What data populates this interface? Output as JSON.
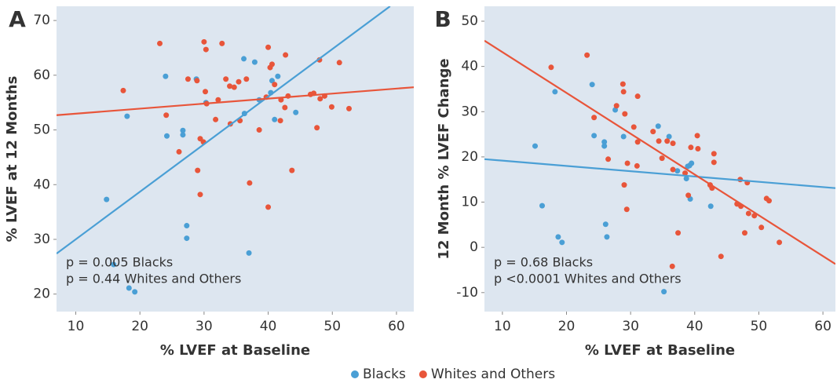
{
  "chart_data": [
    {
      "type": "scatter",
      "panel": "A",
      "y_label": "% LVEF at 12 Months",
      "x_label": "% LVEF at Baseline",
      "annotations": [
        "p = 0.005 Blacks",
        "p = 0.44 Whites and Others"
      ],
      "background": "#dde6f0",
      "xlim": [
        7,
        62.7
      ],
      "ylim": [
        16.8,
        72.6
      ],
      "xticks": [
        10,
        20,
        30,
        40,
        50,
        60
      ],
      "yticks": [
        20,
        30,
        40,
        50,
        60,
        70
      ],
      "series": [
        {
          "name": "Blacks",
          "color": "#4a9fd5",
          "x": [
            24.0,
            18.0,
            24.2,
            26.7,
            26.7,
            14.8,
            27.3,
            27.3,
            15.9,
            18.3,
            19.2,
            28.8,
            30.3,
            36.2,
            37.9,
            41.5,
            40.6,
            40.4,
            38.6,
            41.0,
            44.3,
            37.0,
            36.3
          ],
          "values": [
            59.8,
            52.5,
            48.9,
            49.9,
            49.1,
            37.3,
            32.5,
            30.2,
            25.4,
            21.1,
            20.4,
            59.3,
            55.0,
            63.0,
            62.4,
            59.8,
            59.0,
            56.8,
            55.5,
            51.9,
            53.2,
            27.5,
            53.0
          ]
        },
        {
          "name": "Whites and Others",
          "color": "#e8553a",
          "x": [
            23.1,
            30.0,
            32.8,
            30.3,
            40.0,
            42.7,
            48.0,
            51.1,
            17.4,
            27.5,
            28.9,
            33.4,
            35.4,
            36.6,
            34.0,
            34.7,
            30.2,
            32.2,
            30.4,
            40.3,
            40.6,
            39.7,
            41.0,
            42.0,
            42.6,
            43.1,
            46.6,
            47.1,
            48.1,
            48.8,
            49.9,
            52.6,
            24.1,
            31.8,
            34.1,
            35.6,
            41.9,
            38.6,
            47.6,
            26.1,
            29.4,
            29.9,
            29.0,
            43.7,
            37.1,
            29.4,
            40.0
          ],
          "values": [
            65.8,
            66.1,
            65.8,
            64.7,
            65.1,
            63.7,
            62.8,
            62.3,
            57.2,
            59.3,
            59.0,
            59.3,
            58.8,
            59.3,
            58.0,
            57.8,
            57.0,
            55.5,
            54.8,
            61.4,
            62.0,
            56.0,
            58.3,
            55.5,
            54.1,
            56.2,
            56.5,
            56.7,
            55.7,
            56.2,
            54.2,
            53.9,
            52.7,
            51.9,
            51.1,
            51.7,
            51.7,
            50.0,
            50.4,
            46.0,
            48.4,
            47.8,
            42.6,
            42.6,
            40.3,
            38.2,
            35.9
          ]
        }
      ],
      "fits": [
        {
          "color": "#4a9fd5",
          "x": [
            7,
            59.0
          ],
          "values": [
            27.4,
            72.6
          ]
        },
        {
          "color": "#e8553a",
          "x": [
            7,
            62.7
          ],
          "values": [
            52.7,
            57.8
          ]
        }
      ]
    },
    {
      "type": "scatter",
      "panel": "B",
      "y_label": "12 Month % LVEF Change",
      "x_label": "% LVEF at Baseline",
      "annotations": [
        "p = 0.68 Blacks",
        "p <0.0001 Whites and Others"
      ],
      "background": "#dde6f0",
      "xlim": [
        7.2,
        61.95
      ],
      "ylim": [
        -14.2,
        53.3
      ],
      "xticks": [
        10,
        20,
        30,
        40,
        50,
        60
      ],
      "yticks": [
        -10,
        0,
        10,
        20,
        30,
        40,
        50
      ],
      "series": [
        {
          "name": "Blacks",
          "color": "#4a9fd5",
          "x": [
            15.1,
            18.2,
            24.0,
            24.3,
            25.9,
            25.9,
            16.2,
            18.7,
            19.3,
            26.1,
            26.3,
            27.6,
            28.9,
            34.3,
            36.0,
            37.3,
            38.9,
            39.2,
            39.5,
            38.7,
            39.3,
            42.5,
            35.2
          ],
          "values": [
            22.4,
            34.4,
            36.0,
            24.7,
            23.3,
            22.4,
            9.2,
            2.3,
            1.1,
            5.1,
            2.3,
            30.4,
            24.5,
            26.8,
            24.5,
            16.9,
            17.9,
            18.1,
            18.6,
            15.2,
            10.7,
            9.1,
            -9.8
          ]
        },
        {
          "name": "Whites and Others",
          "color": "#e8553a",
          "x": [
            23.2,
            17.6,
            28.8,
            28.9,
            31.1,
            27.8,
            29.1,
            24.3,
            30.5,
            33.5,
            34.4,
            35.7,
            36.6,
            31.1,
            39.4,
            40.5,
            40.4,
            43.0,
            43.0,
            34.9,
            31.0,
            29.5,
            26.5,
            36.6,
            38.5,
            42.4,
            42.7,
            39.0,
            47.1,
            48.2,
            46.6,
            47.2,
            48.4,
            49.3,
            51.2,
            51.6,
            50.4,
            53.2,
            47.8,
            37.4,
            29.4,
            29.0,
            44.1,
            36.5
          ],
          "values": [
            42.5,
            39.8,
            36.1,
            34.4,
            33.4,
            31.3,
            29.5,
            28.7,
            26.6,
            25.6,
            23.5,
            23.5,
            23.0,
            23.3,
            22.1,
            21.8,
            24.7,
            20.7,
            18.8,
            19.7,
            18.0,
            18.6,
            19.5,
            17.2,
            16.4,
            13.8,
            13.1,
            11.5,
            15.0,
            14.3,
            9.6,
            9.1,
            7.5,
            7.0,
            10.8,
            10.3,
            4.4,
            1.1,
            3.2,
            3.2,
            8.4,
            13.8,
            -2.0,
            -4.2
          ]
        }
      ],
      "fits": [
        {
          "color": "#4a9fd5",
          "x": [
            7.2,
            61.95
          ],
          "values": [
            19.5,
            13.1
          ]
        },
        {
          "color": "#e8553a",
          "x": [
            7.2,
            61.95
          ],
          "values": [
            45.7,
            -3.7
          ]
        }
      ]
    }
  ]
}
